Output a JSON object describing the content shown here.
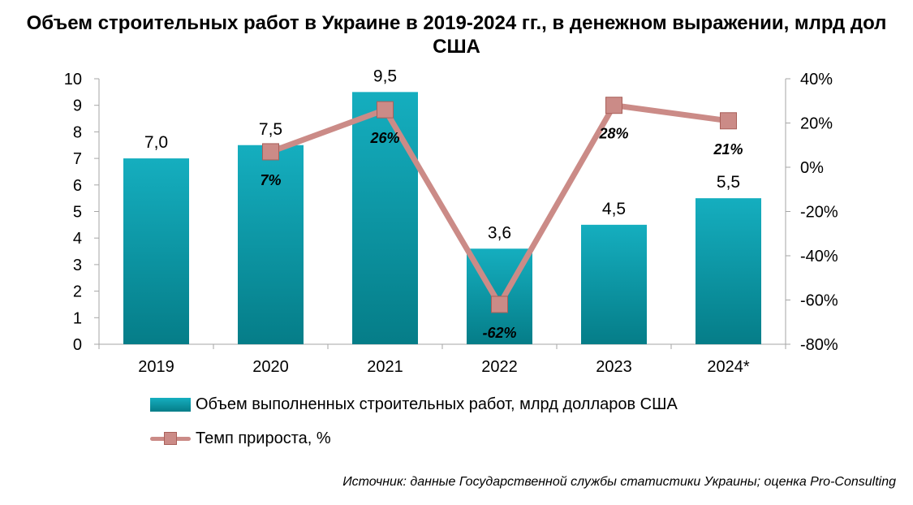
{
  "chart_data": {
    "type": "bar",
    "title": "Объем строительных работ в Украине в 2019-2024 гг., в денежном выражении, млрд дол США",
    "categories": [
      "2019",
      "2020",
      "2021",
      "2022",
      "2023",
      "2024*"
    ],
    "series": [
      {
        "name": "Объем выполненных строительных работ, млрд долларов США",
        "type": "bar",
        "axis": "left",
        "values": [
          7.0,
          7.5,
          9.5,
          3.6,
          4.5,
          5.5
        ],
        "labels": [
          "7,0",
          "7,5",
          "9,5",
          "3,6",
          "4,5",
          "5,5"
        ]
      },
      {
        "name": "Темп прироста, %",
        "type": "line",
        "axis": "right",
        "values": [
          null,
          7,
          26,
          -62,
          28,
          21
        ],
        "labels": [
          "",
          "7%",
          "26%",
          "-62%",
          "28%",
          "21%"
        ]
      }
    ],
    "y_left": {
      "min": 0,
      "max": 10,
      "ticks": [
        0,
        1,
        2,
        3,
        4,
        5,
        6,
        7,
        8,
        9,
        10
      ],
      "tick_labels": [
        "0",
        "1",
        "2",
        "3",
        "4",
        "5",
        "6",
        "7",
        "8",
        "9",
        "10"
      ]
    },
    "y_right": {
      "min": -80,
      "max": 40,
      "ticks": [
        -80,
        -60,
        -40,
        -20,
        0,
        20,
        40
      ],
      "tick_labels": [
        "-80%",
        "-60%",
        "-40%",
        "-20%",
        "0%",
        "20%",
        "40%"
      ]
    },
    "grid": false,
    "legend_position": "bottom",
    "colors": {
      "bar_top": "#15aebf",
      "bar_bottom": "#057d88",
      "line": "#cb8b87",
      "marker_stroke": "#a9605a",
      "axis": "#a6a6a6"
    }
  },
  "source_note": "Источник: данные Государственной службы статистики Украины; оценка Pro-Consulting"
}
